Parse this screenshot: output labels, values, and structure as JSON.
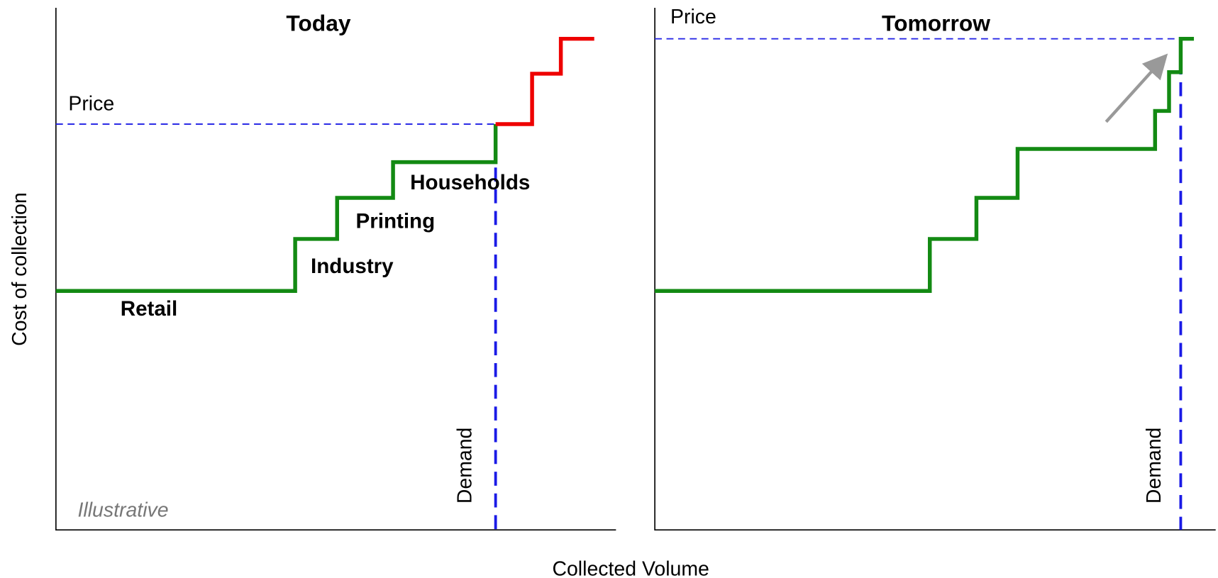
{
  "left": {
    "title": "Today",
    "price_label": "Price",
    "demand_label": "Demand",
    "segments": [
      "Retail",
      "Industry",
      "Printing",
      "Households"
    ],
    "note": "Illustrative"
  },
  "right": {
    "title": "Tomorrow",
    "price_label": "Price",
    "demand_label": "Demand"
  },
  "y_axis_label": "Cost of collection",
  "x_axis_label": "Collected Volume"
}
